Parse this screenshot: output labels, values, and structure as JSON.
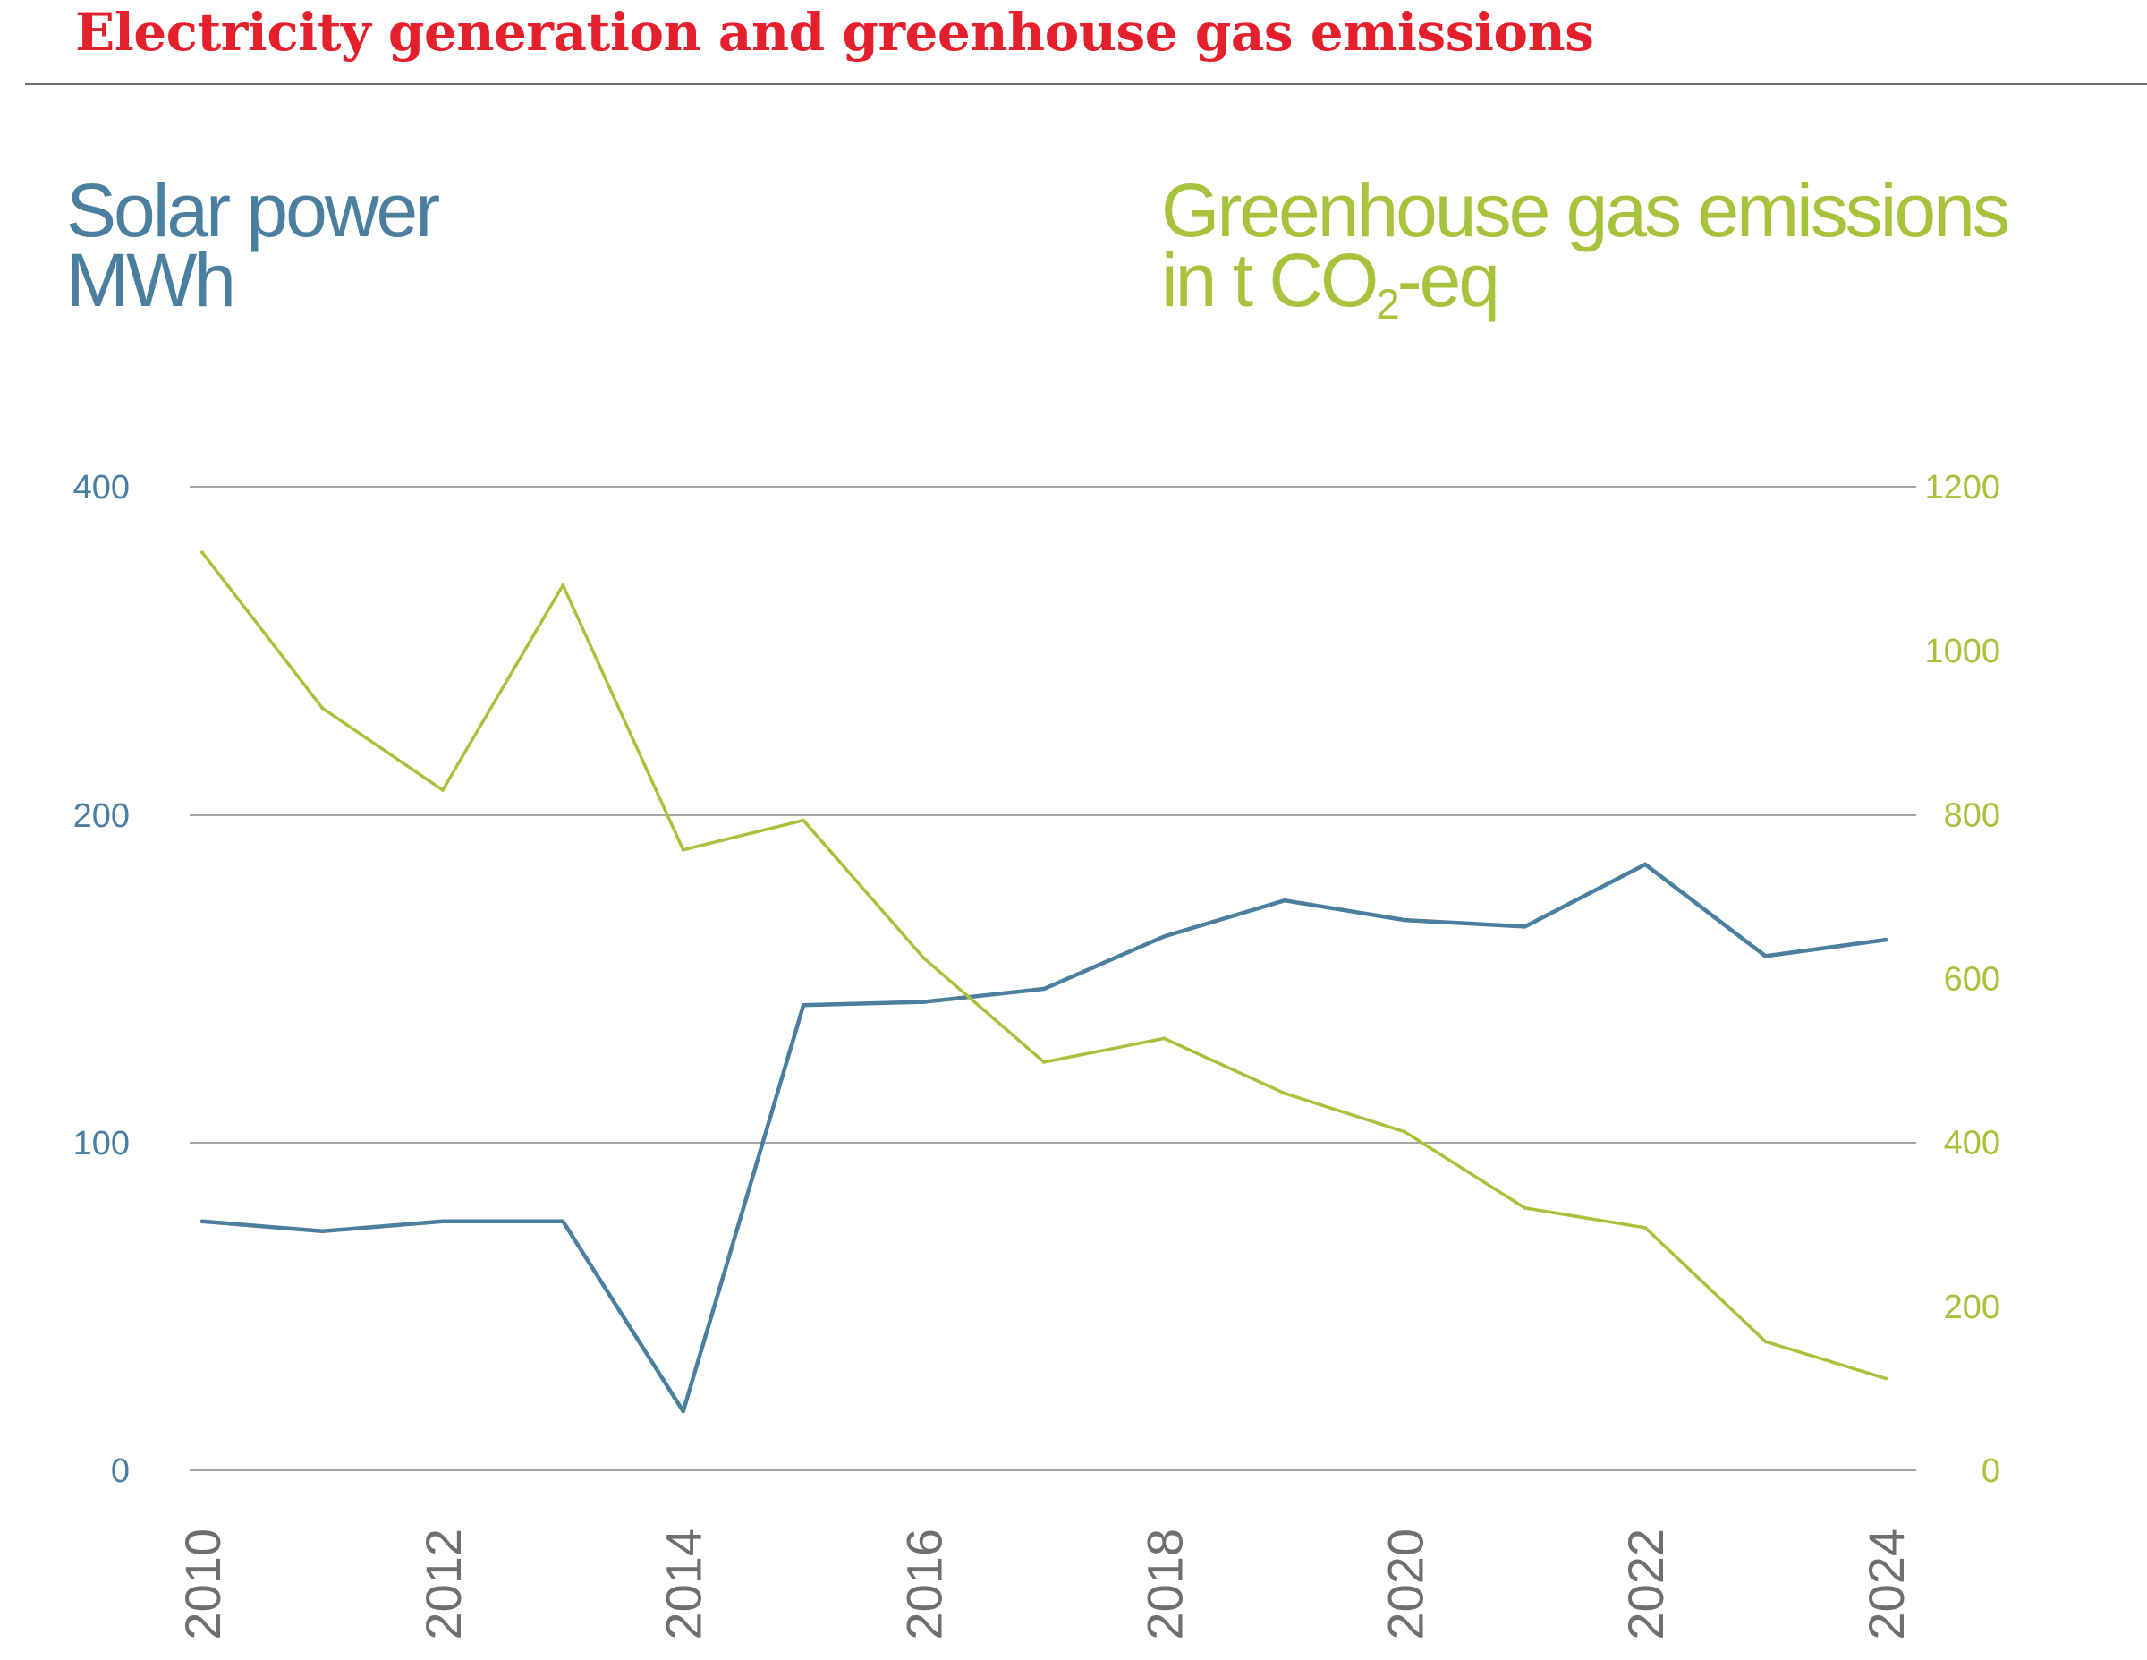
{
  "chart_data": {
    "type": "line",
    "title": "Electricity generation and greenhouse gas emissions",
    "left_axis": {
      "label_line1": "Solar power",
      "label_line2": "MWh",
      "color": "#4a7fa0",
      "ticks": [
        0,
        100,
        200,
        400
      ],
      "tick_labels": [
        "0",
        "100",
        "200",
        "400"
      ],
      "note": "scale is non-linear (0–100–200 evenly spaced, then 400 at same spacing ×1.5)"
    },
    "right_axis": {
      "label_line1": "Greenhouse gas emissions",
      "label_line2_pre": "in t CO",
      "label_line2_sub": "2",
      "label_line2_post": "-eq",
      "color": "#a9c23c",
      "ylim": [
        0,
        1200
      ],
      "ticks": [
        "0",
        "200",
        "400",
        "600",
        "800",
        "1000",
        "1200"
      ]
    },
    "x_ticks": [
      "2010",
      "2012",
      "2014",
      "2016",
      "2018",
      "2020",
      "2022",
      "2024"
    ],
    "grid": true,
    "series": [
      {
        "axis": "left",
        "color": "#4a7fa0",
        "x": [
          2010,
          2011,
          2012,
          2013,
          2014,
          2015,
          2016,
          2017,
          2018,
          2019,
          2020,
          2021,
          2022,
          2023,
          2024
        ],
        "values": [
          76,
          73,
          76,
          76,
          18,
          142,
          143,
          147,
          163,
          174,
          168,
          166,
          185,
          157,
          162
        ]
      },
      {
        "axis": "right",
        "color": "#a9c23c",
        "x": [
          2010,
          2011,
          2012,
          2013,
          2014,
          2015,
          2016,
          2017,
          2018,
          2019,
          2020,
          2021,
          2022,
          2023,
          2024
        ],
        "values": [
          1120,
          930,
          830,
          1080,
          757,
          793,
          625,
          498,
          527,
          460,
          413,
          320,
          296,
          157,
          112
        ]
      }
    ]
  }
}
